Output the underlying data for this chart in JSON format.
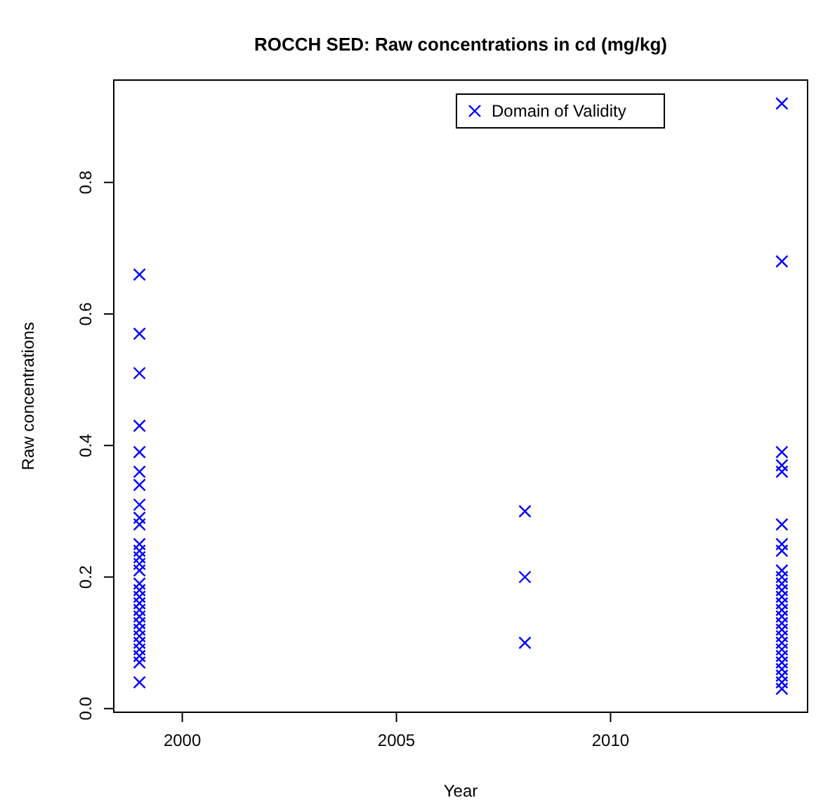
{
  "chart_data": {
    "type": "scatter",
    "title": "ROCCH SED: Raw concentrations in cd (mg/kg)",
    "xlabel": "Year",
    "ylabel": "Raw concentrations",
    "xlim": [
      1998.4,
      2014.6
    ],
    "xticks": [
      2000,
      2005,
      2010
    ],
    "ylim": [
      -0.0056,
      0.9556
    ],
    "yticks": [
      {
        "value": 0,
        "label": "0.0"
      },
      0.2,
      0.4,
      0.6,
      0.8
    ],
    "grid": false,
    "legend": "top",
    "marker": "cross",
    "series": [
      {
        "name": "Domain of Validity",
        "color": "#0000ff",
        "x": [
          1999,
          1999,
          1999,
          1999,
          1999,
          1999,
          1999,
          1999,
          1999,
          1999,
          1999,
          1999,
          1999,
          1999,
          1999,
          1999,
          1999,
          1999,
          1999,
          1999,
          1999,
          1999,
          1999,
          1999,
          1999,
          1999,
          1999,
          1999,
          1999,
          2008,
          2008,
          2008,
          2014,
          2014,
          2014,
          2014,
          2014,
          2014,
          2014,
          2014,
          2014,
          2014,
          2014,
          2014,
          2014,
          2014,
          2014,
          2014,
          2014,
          2014,
          2014,
          2014,
          2014,
          2014,
          2014,
          2014,
          2014,
          2014,
          2014
        ],
        "values": [
          0.66,
          0.57,
          0.51,
          0.43,
          0.39,
          0.36,
          0.34,
          0.31,
          0.29,
          0.28,
          0.25,
          0.24,
          0.23,
          0.22,
          0.21,
          0.19,
          0.18,
          0.17,
          0.16,
          0.15,
          0.14,
          0.13,
          0.12,
          0.11,
          0.1,
          0.09,
          0.08,
          0.07,
          0.04,
          0.3,
          0.2,
          0.1,
          0.92,
          0.68,
          0.39,
          0.37,
          0.36,
          0.28,
          0.25,
          0.24,
          0.21,
          0.2,
          0.19,
          0.18,
          0.17,
          0.16,
          0.15,
          0.14,
          0.13,
          0.12,
          0.11,
          0.1,
          0.09,
          0.08,
          0.07,
          0.06,
          0.05,
          0.04,
          0.03
        ]
      }
    ]
  }
}
